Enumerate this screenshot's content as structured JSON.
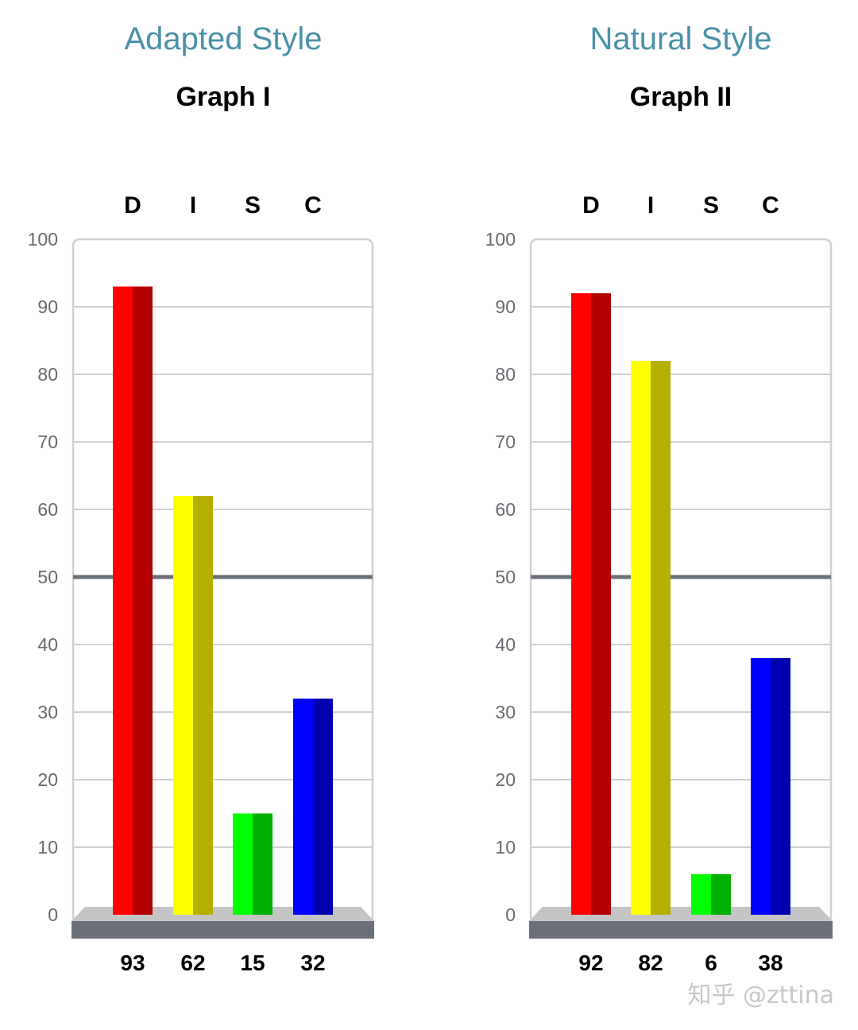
{
  "watermark": "知乎 @zttina",
  "colors": {
    "title": "#4a90a8",
    "grid": "#d0d0d0",
    "midline": "#6b7078",
    "base_top": "#c4c4c4",
    "base_front": "#6b7078",
    "D": [
      "#ff0000",
      "#b30000"
    ],
    "I": [
      "#ffff00",
      "#b5b000"
    ],
    "S": [
      "#00ff00",
      "#00b000"
    ],
    "C": [
      "#0000ff",
      "#0000b0"
    ]
  },
  "chart_data": [
    {
      "type": "bar",
      "style_title": "Adapted Style",
      "title": "Graph I",
      "categories": [
        "D",
        "I",
        "S",
        "C"
      ],
      "values": [
        93,
        62,
        15,
        32
      ],
      "value_labels": [
        "93",
        "62",
        "15",
        "32"
      ],
      "ylim": [
        0,
        100
      ],
      "yticks": [
        0,
        10,
        20,
        30,
        40,
        50,
        60,
        70,
        80,
        90,
        100
      ],
      "reference_line": 50,
      "grid": true
    },
    {
      "type": "bar",
      "style_title": "Natural Style",
      "title": "Graph II",
      "categories": [
        "D",
        "I",
        "S",
        "C"
      ],
      "values": [
        92,
        82,
        6,
        38
      ],
      "value_labels": [
        "92",
        "82",
        "6",
        "38"
      ],
      "ylim": [
        0,
        100
      ],
      "yticks": [
        0,
        10,
        20,
        30,
        40,
        50,
        60,
        70,
        80,
        90,
        100
      ],
      "reference_line": 50,
      "grid": true
    }
  ]
}
